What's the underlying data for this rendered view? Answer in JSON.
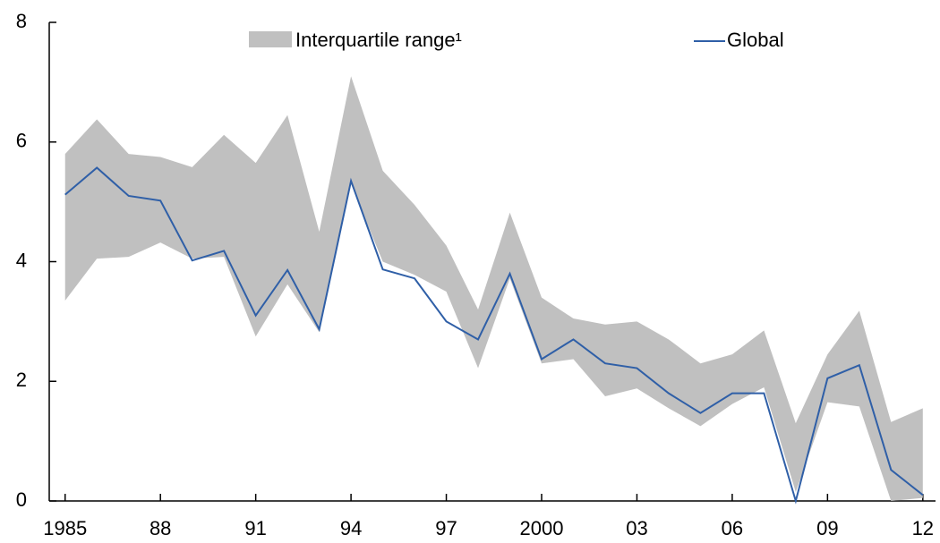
{
  "chart_data": {
    "type": "line",
    "x": [
      1985,
      1986,
      1987,
      1988,
      1989,
      1990,
      1991,
      1992,
      1993,
      1994,
      1995,
      1996,
      1997,
      1998,
      1999,
      2000,
      2001,
      2002,
      2003,
      2004,
      2005,
      2006,
      2007,
      2008,
      2009,
      2010,
      2011,
      2012
    ],
    "series": [
      {
        "name": "Interquartile range¹",
        "color": "#c0c0c0",
        "upper": [
          5.8,
          6.38,
          5.8,
          5.75,
          5.58,
          6.12,
          5.65,
          6.45,
          4.5,
          7.1,
          5.52,
          4.95,
          4.27,
          3.2,
          4.82,
          3.4,
          3.05,
          2.95,
          3.0,
          2.7,
          2.3,
          2.45,
          2.85,
          1.3,
          2.45,
          3.18,
          1.32,
          1.55
        ],
        "lower": [
          3.35,
          4.05,
          4.08,
          4.32,
          4.05,
          4.08,
          2.75,
          3.62,
          2.82,
          5.3,
          4.0,
          3.78,
          3.5,
          2.22,
          3.72,
          2.3,
          2.37,
          1.75,
          1.88,
          1.55,
          1.25,
          1.62,
          1.9,
          0.15,
          1.65,
          1.58,
          0,
          0.05
        ]
      },
      {
        "name": "Global",
        "color": "#2f5fa7",
        "values": [
          5.12,
          5.57,
          5.1,
          5.02,
          4.02,
          4.18,
          3.1,
          3.86,
          2.87,
          5.35,
          3.87,
          3.72,
          3.0,
          2.7,
          3.8,
          2.37,
          2.7,
          2.3,
          2.22,
          1.8,
          1.47,
          1.8,
          1.8,
          0,
          2.05,
          2.27,
          0.52,
          0.1
        ]
      }
    ],
    "xlim": [
      1984.5,
      2012.4
    ],
    "xticks": [
      {
        "value": 1985,
        "label": "1985"
      },
      {
        "value": 1988,
        "label": "88"
      },
      {
        "value": 1991,
        "label": "91"
      },
      {
        "value": 1994,
        "label": "94"
      },
      {
        "value": 1997,
        "label": "97"
      },
      {
        "value": 2000,
        "label": "2000"
      },
      {
        "value": 2003,
        "label": "03"
      },
      {
        "value": 2006,
        "label": "06"
      },
      {
        "value": 2009,
        "label": "09"
      },
      {
        "value": 2012,
        "label": "12"
      }
    ],
    "ylim": [
      0,
      8
    ],
    "yticks": [
      0,
      2,
      4,
      6,
      8
    ],
    "grid": false
  }
}
